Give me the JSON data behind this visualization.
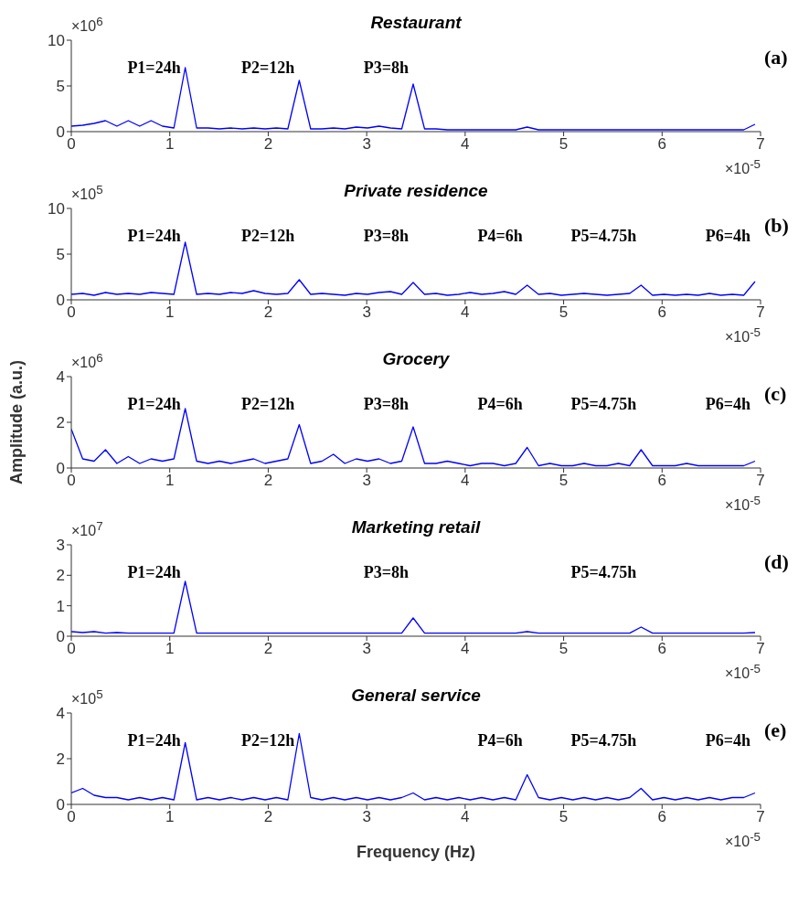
{
  "chart_data": [
    {
      "type": "line",
      "title": "Restaurant",
      "xlim": [
        0,
        7
      ],
      "ylim": [
        0,
        10
      ],
      "xticks": [
        0,
        1,
        2,
        3,
        4,
        5,
        6,
        7
      ],
      "yticks": [
        0,
        5,
        10
      ],
      "x": [
        0,
        0.1157,
        0.2315,
        0.3472,
        0.463,
        0.5787,
        0.6944,
        0.8102,
        0.9259,
        1.042,
        1.157,
        1.273,
        1.389,
        1.505,
        1.62,
        1.736,
        1.852,
        1.968,
        2.083,
        2.199,
        2.315,
        2.431,
        2.546,
        2.662,
        2.778,
        2.894,
        3.009,
        3.125,
        3.241,
        3.356,
        3.472,
        3.588,
        3.704,
        3.819,
        3.935,
        4.051,
        4.167,
        4.282,
        4.398,
        4.514,
        4.63,
        4.745,
        4.861,
        4.977,
        5.093,
        5.208,
        5.324,
        5.44,
        5.556,
        5.671,
        5.787,
        5.903,
        6.019,
        6.134,
        6.25,
        6.366,
        6.481,
        6.597,
        6.713,
        6.829,
        6.944
      ],
      "series": [
        {
          "color": "#0000ff",
          "values": [
            0.6,
            0.7,
            0.9,
            1.2,
            0.6,
            1.2,
            0.6,
            1.2,
            0.6,
            0.4,
            7,
            0.4,
            0.4,
            0.3,
            0.4,
            0.3,
            0.4,
            0.3,
            0.4,
            0.3,
            5.6,
            0.3,
            0.3,
            0.4,
            0.3,
            0.5,
            0.4,
            0.6,
            0.4,
            0.3,
            5.2,
            0.3,
            0.3,
            0.2,
            0.2,
            0.2,
            0.2,
            0.2,
            0.2,
            0.2,
            0.5,
            0.2,
            0.2,
            0.2,
            0.2,
            0.2,
            0.2,
            0.2,
            0.2,
            0.2,
            0.2,
            0.2,
            0.2,
            0.2,
            0.2,
            0.2,
            0.2,
            0.2,
            0.2,
            0.2,
            0.8
          ]
        }
      ],
      "annotations": [
        "(a)",
        "×10$^{6}$",
        "×10$^{-5}$",
        {
          "text": "P1=24h",
          "x": 1.157,
          "y": 7
        },
        {
          "text": "P2=12h",
          "x": 2.315,
          "y": 5.6
        },
        {
          "text": "P3=8h",
          "x": 3.472,
          "y": 5.2
        }
      ]
    },
    {
      "type": "line",
      "title": "Private residence",
      "xlim": [
        0,
        7
      ],
      "ylim": [
        0,
        10
      ],
      "xticks": [
        0,
        1,
        2,
        3,
        4,
        5,
        6,
        7
      ],
      "yticks": [
        0,
        5,
        10
      ],
      "x": [
        0,
        0.1157,
        0.2315,
        0.3472,
        0.463,
        0.5787,
        0.6944,
        0.8102,
        0.9259,
        1.042,
        1.157,
        1.273,
        1.389,
        1.505,
        1.62,
        1.736,
        1.852,
        1.968,
        2.083,
        2.199,
        2.315,
        2.431,
        2.546,
        2.662,
        2.778,
        2.894,
        3.009,
        3.125,
        3.241,
        3.356,
        3.472,
        3.588,
        3.704,
        3.819,
        3.935,
        4.051,
        4.167,
        4.282,
        4.398,
        4.514,
        4.63,
        4.745,
        4.861,
        4.977,
        5.093,
        5.208,
        5.324,
        5.44,
        5.556,
        5.671,
        5.787,
        5.903,
        6.019,
        6.134,
        6.25,
        6.366,
        6.481,
        6.597,
        6.713,
        6.829,
        6.944
      ],
      "series": [
        {
          "color": "#0000ff",
          "values": [
            0.6,
            0.7,
            0.5,
            0.8,
            0.6,
            0.7,
            0.6,
            0.8,
            0.7,
            0.6,
            6.3,
            0.6,
            0.7,
            0.6,
            0.8,
            0.7,
            1,
            0.7,
            0.6,
            0.7,
            2.2,
            0.6,
            0.7,
            0.6,
            0.5,
            0.7,
            0.6,
            0.8,
            0.9,
            0.6,
            1.9,
            0.6,
            0.7,
            0.5,
            0.6,
            0.8,
            0.6,
            0.7,
            0.9,
            0.6,
            1.6,
            0.6,
            0.7,
            0.5,
            0.6,
            0.7,
            0.6,
            0.5,
            0.6,
            0.7,
            1.6,
            0.5,
            0.6,
            0.5,
            0.6,
            0.5,
            0.7,
            0.5,
            0.6,
            0.5,
            2
          ]
        }
      ],
      "annotations": [
        "(b)",
        "×10$^{5}$",
        "×10$^{-5}$",
        {
          "text": "P1=24h",
          "x": 1.157,
          "y": 6.3
        },
        {
          "text": "P2=12h",
          "x": 2.315,
          "y": 2.2
        },
        {
          "text": "P3=8h",
          "x": 3.472,
          "y": 1.9
        },
        {
          "text": "P4=6h",
          "x": 4.63,
          "y": 1.6
        },
        {
          "text": "P5=4.75h",
          "x": 5.787,
          "y": 1.6
        },
        {
          "text": "P6=4h",
          "x": 6.944,
          "y": 2
        }
      ]
    },
    {
      "type": "line",
      "title": "Grocery",
      "ylabel": "Amplitude (a.u.)",
      "xlim": [
        0,
        7
      ],
      "ylim": [
        0,
        4
      ],
      "xticks": [
        0,
        1,
        2,
        3,
        4,
        5,
        6,
        7
      ],
      "yticks": [
        0,
        2,
        4
      ],
      "x": [
        0,
        0.1157,
        0.2315,
        0.3472,
        0.463,
        0.5787,
        0.6944,
        0.8102,
        0.9259,
        1.042,
        1.157,
        1.273,
        1.389,
        1.505,
        1.62,
        1.736,
        1.852,
        1.968,
        2.083,
        2.199,
        2.315,
        2.431,
        2.546,
        2.662,
        2.778,
        2.894,
        3.009,
        3.125,
        3.241,
        3.356,
        3.472,
        3.588,
        3.704,
        3.819,
        3.935,
        4.051,
        4.167,
        4.282,
        4.398,
        4.514,
        4.63,
        4.745,
        4.861,
        4.977,
        5.093,
        5.208,
        5.324,
        5.44,
        5.556,
        5.671,
        5.787,
        5.903,
        6.019,
        6.134,
        6.25,
        6.366,
        6.481,
        6.597,
        6.713,
        6.829,
        6.944
      ],
      "series": [
        {
          "color": "#0000ff",
          "values": [
            1.7,
            0.4,
            0.3,
            0.8,
            0.2,
            0.5,
            0.2,
            0.4,
            0.3,
            0.4,
            2.6,
            0.3,
            0.2,
            0.3,
            0.2,
            0.3,
            0.4,
            0.2,
            0.3,
            0.4,
            1.9,
            0.2,
            0.3,
            0.6,
            0.2,
            0.4,
            0.3,
            0.4,
            0.2,
            0.3,
            1.8,
            0.2,
            0.2,
            0.3,
            0.2,
            0.1,
            0.2,
            0.2,
            0.1,
            0.2,
            0.9,
            0.1,
            0.2,
            0.1,
            0.1,
            0.2,
            0.1,
            0.1,
            0.2,
            0.1,
            0.8,
            0.1,
            0.1,
            0.1,
            0.2,
            0.1,
            0.1,
            0.1,
            0.1,
            0.1,
            0.3
          ]
        }
      ],
      "annotations": [
        "(c)",
        "×10$^{6}$",
        "×10$^{-5}$",
        {
          "text": "P1=24h",
          "x": 1.157,
          "y": 2.6
        },
        {
          "text": "P2=12h",
          "x": 2.315,
          "y": 1.9
        },
        {
          "text": "P3=8h",
          "x": 3.472,
          "y": 1.8
        },
        {
          "text": "P4=6h",
          "x": 4.63,
          "y": 0.9
        },
        {
          "text": "P5=4.75h",
          "x": 5.787,
          "y": 0.8
        },
        {
          "text": "P6=4h",
          "x": 6.944,
          "y": 0.3
        }
      ]
    },
    {
      "type": "line",
      "title": "Marketing retail",
      "xlim": [
        0,
        7
      ],
      "ylim": [
        0,
        3
      ],
      "xticks": [
        0,
        1,
        2,
        3,
        4,
        5,
        6,
        7
      ],
      "yticks": [
        0,
        1,
        2,
        3
      ],
      "x": [
        0,
        0.1157,
        0.2315,
        0.3472,
        0.463,
        0.5787,
        0.6944,
        0.8102,
        0.9259,
        1.042,
        1.157,
        1.273,
        1.389,
        1.505,
        1.62,
        1.736,
        1.852,
        1.968,
        2.083,
        2.199,
        2.315,
        2.431,
        2.546,
        2.662,
        2.778,
        2.894,
        3.009,
        3.125,
        3.241,
        3.356,
        3.472,
        3.588,
        3.704,
        3.819,
        3.935,
        4.051,
        4.167,
        4.282,
        4.398,
        4.514,
        4.63,
        4.745,
        4.861,
        4.977,
        5.093,
        5.208,
        5.324,
        5.44,
        5.556,
        5.671,
        5.787,
        5.903,
        6.019,
        6.134,
        6.25,
        6.366,
        6.481,
        6.597,
        6.713,
        6.829,
        6.944
      ],
      "series": [
        {
          "color": "#0000ff",
          "values": [
            0.15,
            0.12,
            0.15,
            0.1,
            0.12,
            0.1,
            0.1,
            0.1,
            0.1,
            0.1,
            1.8,
            0.1,
            0.1,
            0.1,
            0.1,
            0.1,
            0.1,
            0.1,
            0.1,
            0.1,
            0.1,
            0.1,
            0.1,
            0.1,
            0.1,
            0.1,
            0.1,
            0.1,
            0.1,
            0.1,
            0.6,
            0.1,
            0.1,
            0.1,
            0.1,
            0.1,
            0.1,
            0.1,
            0.1,
            0.1,
            0.15,
            0.1,
            0.1,
            0.1,
            0.1,
            0.1,
            0.1,
            0.1,
            0.1,
            0.1,
            0.3,
            0.1,
            0.1,
            0.1,
            0.1,
            0.1,
            0.1,
            0.1,
            0.1,
            0.1,
            0.12
          ]
        }
      ],
      "annotations": [
        "(d)",
        "×10$^{7}$",
        "×10$^{-5}$",
        {
          "text": "P1=24h",
          "x": 1.157,
          "y": 1.8
        },
        {
          "text": "P3=8h",
          "x": 3.472,
          "y": 0.6
        },
        {
          "text": "P5=4.75h",
          "x": 5.787,
          "y": 0.3
        }
      ]
    },
    {
      "type": "line",
      "title": "General service",
      "xlabel": "Frequency (Hz)",
      "xlim": [
        0,
        7
      ],
      "ylim": [
        0,
        4
      ],
      "xticks": [
        0,
        1,
        2,
        3,
        4,
        5,
        6,
        7
      ],
      "yticks": [
        0,
        2,
        4
      ],
      "x": [
        0,
        0.1157,
        0.2315,
        0.3472,
        0.463,
        0.5787,
        0.6944,
        0.8102,
        0.9259,
        1.042,
        1.157,
        1.273,
        1.389,
        1.505,
        1.62,
        1.736,
        1.852,
        1.968,
        2.083,
        2.199,
        2.315,
        2.431,
        2.546,
        2.662,
        2.778,
        2.894,
        3.009,
        3.125,
        3.241,
        3.356,
        3.472,
        3.588,
        3.704,
        3.819,
        3.935,
        4.051,
        4.167,
        4.282,
        4.398,
        4.514,
        4.63,
        4.745,
        4.861,
        4.977,
        5.093,
        5.208,
        5.324,
        5.44,
        5.556,
        5.671,
        5.787,
        5.903,
        6.019,
        6.134,
        6.25,
        6.366,
        6.481,
        6.597,
        6.713,
        6.829,
        6.944
      ],
      "series": [
        {
          "color": "#0000ff",
          "values": [
            0.5,
            0.7,
            0.4,
            0.3,
            0.3,
            0.2,
            0.3,
            0.2,
            0.3,
            0.2,
            2.7,
            0.2,
            0.3,
            0.2,
            0.3,
            0.2,
            0.3,
            0.2,
            0.3,
            0.2,
            3.1,
            0.3,
            0.2,
            0.3,
            0.2,
            0.3,
            0.2,
            0.3,
            0.2,
            0.3,
            0.5,
            0.2,
            0.3,
            0.2,
            0.3,
            0.2,
            0.3,
            0.2,
            0.3,
            0.2,
            1.3,
            0.3,
            0.2,
            0.3,
            0.2,
            0.3,
            0.2,
            0.3,
            0.2,
            0.3,
            0.7,
            0.2,
            0.3,
            0.2,
            0.3,
            0.2,
            0.3,
            0.2,
            0.3,
            0.3,
            0.5
          ]
        }
      ],
      "annotations": [
        "(e)",
        "×10$^{5}$",
        "×10$^{-5}$",
        {
          "text": "P1=24h",
          "x": 1.157,
          "y": 2.7
        },
        {
          "text": "P2=12h",
          "x": 2.315,
          "y": 3.1
        },
        {
          "text": "P4=6h",
          "x": 4.63,
          "y": 1.3
        },
        {
          "text": "P5=4.75h",
          "x": 5.787,
          "y": 0.7
        },
        {
          "text": "P6=4h",
          "x": 6.944,
          "y": 0.5
        }
      ]
    }
  ]
}
